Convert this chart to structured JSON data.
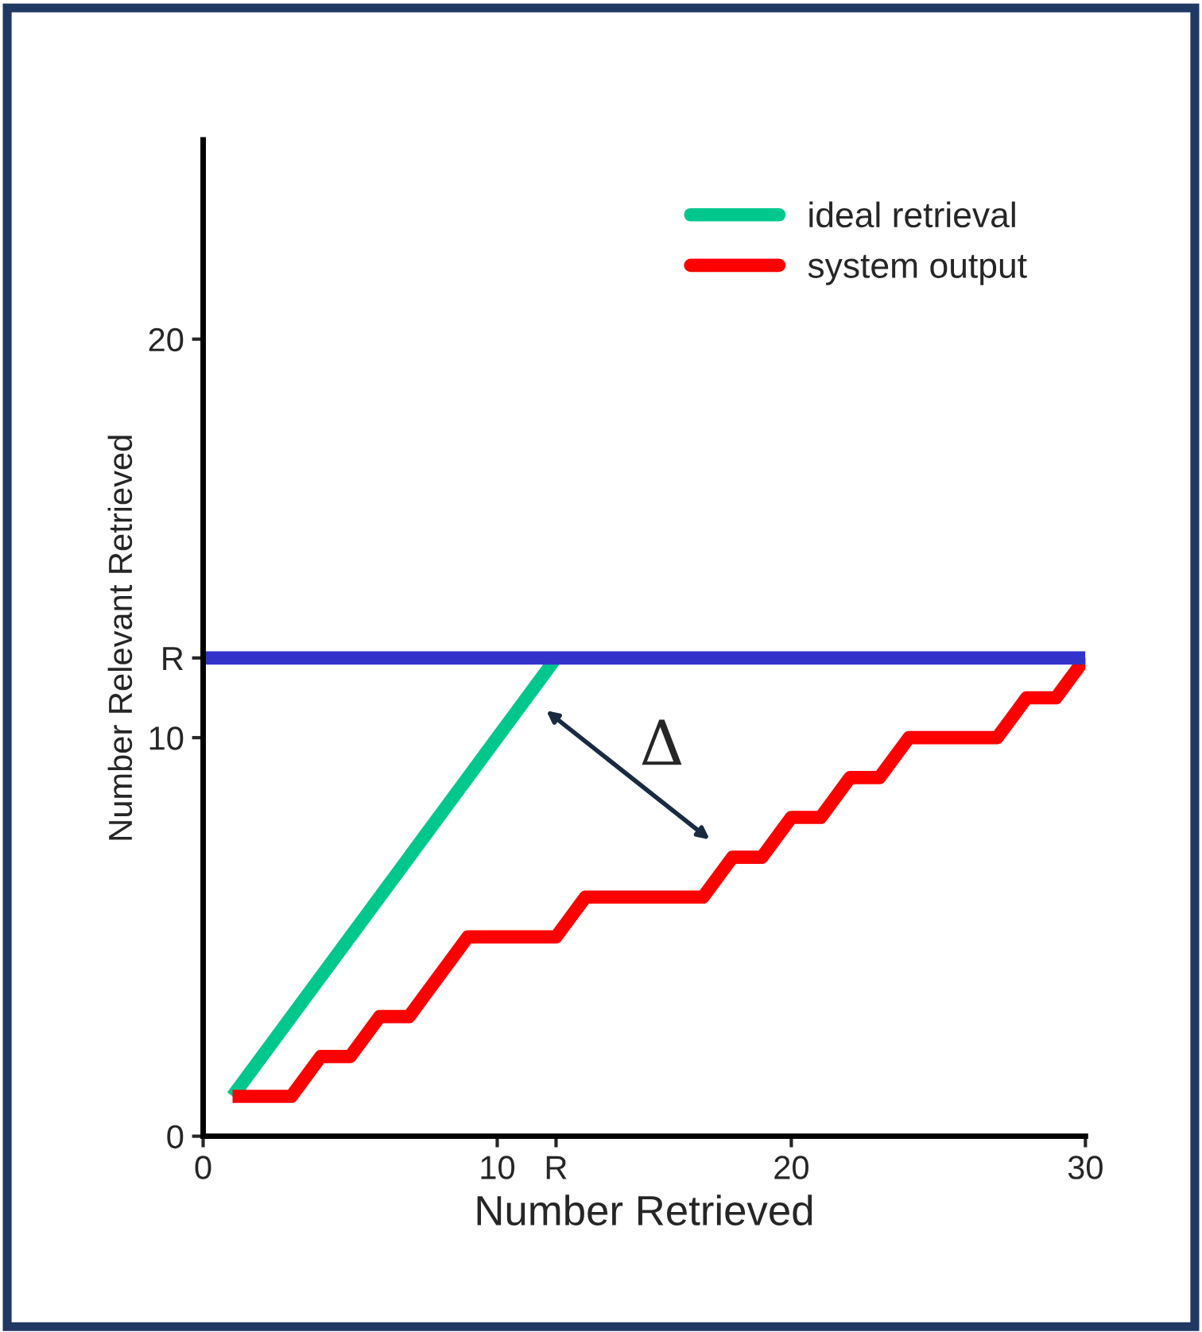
{
  "chart_data": {
    "type": "line",
    "xlabel": "Number Retrieved",
    "ylabel": "Number Relevant Retrieved",
    "xlim": [
      0,
      30
    ],
    "ylim": [
      0,
      25
    ],
    "xticks": [
      0,
      10,
      20,
      30,
      {
        "value": 12,
        "label": "R"
      }
    ],
    "yticks": [
      0,
      10,
      20,
      {
        "value": 12,
        "label": "R"
      }
    ],
    "series": [
      {
        "name": "ideal retrieval",
        "color": "#00c88c",
        "x": [
          1,
          12
        ],
        "values": [
          1,
          12
        ]
      },
      {
        "name": "system output",
        "color": "#ff0000",
        "x": [
          1,
          3,
          4,
          5,
          6,
          7,
          9,
          12,
          13,
          17,
          18,
          19,
          20,
          21,
          22,
          23,
          24,
          27,
          28,
          29,
          30
        ],
        "values": [
          1,
          1,
          2,
          2,
          3,
          3,
          5,
          5,
          6,
          6,
          7,
          7,
          8,
          8,
          9,
          9,
          10,
          10,
          11,
          11,
          12
        ]
      },
      {
        "color": "#3333cc",
        "x": [
          0,
          30
        ],
        "values": [
          12,
          12
        ]
      }
    ],
    "annotations": [
      "Δ"
    ],
    "legend": "top right",
    "grid": false,
    "marker": "none",
    "line_style": "solid"
  }
}
